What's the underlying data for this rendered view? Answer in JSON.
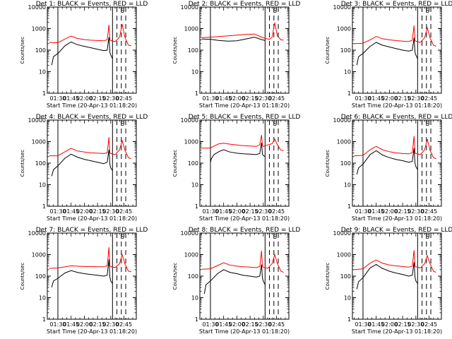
{
  "figure": {
    "xlabel": "Start Time (20-Apr-13 01:18:20)",
    "ylabel": "Counts/sec",
    "x_tick_labels": [
      "01:30",
      "01:45",
      "02:00",
      "02:15",
      "02:30",
      "02:45"
    ],
    "y_tick_labels": [
      "1",
      "10",
      "100",
      "1000",
      "10000"
    ]
  },
  "chart_data": [
    {
      "type": "line",
      "title": "Det 1: BLACK = Events, RED = LLD",
      "xlabel": "Start Time (20-Apr-13 01:18:20)",
      "ylabel": "Counts/sec",
      "yscale": "log",
      "ylim": [
        1,
        10000
      ],
      "x_ticks": [
        "01:30",
        "01:45",
        "02:00",
        "02:15",
        "02:30",
        "02:45"
      ],
      "markers": [
        "01:30",
        "02:32",
        "02:37",
        "02:42",
        "02:47"
      ],
      "series": [
        {
          "color": "#000000",
          "x": [
            "01:23",
            "01:25",
            "01:30",
            "01:38",
            "01:45",
            "01:52",
            "02:00",
            "02:07",
            "02:15",
            "02:22",
            "02:26",
            "02:28",
            "02:29",
            "02:30",
            "02:32"
          ],
          "y": [
            20,
            50,
            70,
            160,
            240,
            180,
            150,
            130,
            110,
            95,
            100,
            400,
            80,
            60,
            40
          ]
        },
        {
          "color": "#ff0000",
          "x": [
            "01:20",
            "01:30",
            "01:38",
            "01:45",
            "01:52",
            "02:00",
            "02:07",
            "02:15",
            "02:22",
            "02:26",
            "02:28",
            "02:29",
            "02:30",
            "02:35",
            "02:40",
            "02:43",
            "02:46",
            "02:50",
            "02:53"
          ],
          "y": [
            230,
            220,
            330,
            450,
            350,
            310,
            290,
            280,
            270,
            300,
            1500,
            300,
            280,
            250,
            400,
            1600,
            400,
            170,
            160
          ]
        }
      ]
    },
    {
      "type": "line",
      "title": "Det 2: BLACK = Events, RED = LLD",
      "xlabel": "Start Time (20-Apr-13 01:18:20)",
      "ylabel": "Counts/sec",
      "yscale": "log",
      "ylim": [
        1,
        10000
      ],
      "x_ticks": [
        "01:30",
        "01:45",
        "02:00",
        "02:15",
        "02:30",
        "02:45"
      ],
      "markers": [
        "01:30",
        "02:32",
        "02:37",
        "02:42",
        "02:47"
      ],
      "series": [
        {
          "color": "#000000",
          "x": [
            "01:20",
            "01:30",
            "01:40",
            "01:50",
            "02:00",
            "02:10",
            "02:20",
            "02:27",
            "02:32"
          ],
          "y": [
            330,
            320,
            280,
            260,
            270,
            330,
            400,
            320,
            280
          ]
        },
        {
          "color": "#ff0000",
          "x": [
            "01:20",
            "01:30",
            "01:40",
            "01:50",
            "02:00",
            "02:10",
            "02:20",
            "02:27",
            "02:32",
            "02:37",
            "02:40",
            "02:43",
            "02:46",
            "02:50",
            "02:53"
          ],
          "y": [
            380,
            400,
            430,
            460,
            500,
            540,
            560,
            420,
            350,
            320,
            400,
            1900,
            450,
            300,
            290
          ]
        }
      ]
    },
    {
      "type": "line",
      "title": "Det 3: BLACK = Events, RED = LLD",
      "xlabel": "Start Time (20-Apr-13 01:18:20)",
      "ylabel": "Counts/sec",
      "yscale": "log",
      "ylim": [
        1,
        10000
      ],
      "x_ticks": [
        "01:30",
        "01:45",
        "02:00",
        "02:15",
        "02:30",
        "02:45"
      ],
      "markers": [
        "01:30",
        "02:32",
        "02:37",
        "02:42",
        "02:47"
      ],
      "series": [
        {
          "color": "#000000",
          "x": [
            "01:23",
            "01:25",
            "01:30",
            "01:38",
            "01:45",
            "01:52",
            "02:00",
            "02:07",
            "02:15",
            "02:22",
            "02:26",
            "02:28",
            "02:29",
            "02:30",
            "02:32"
          ],
          "y": [
            20,
            50,
            70,
            150,
            230,
            170,
            140,
            120,
            100,
            90,
            100,
            380,
            80,
            60,
            40
          ]
        },
        {
          "color": "#ff0000",
          "x": [
            "01:20",
            "01:30",
            "01:38",
            "01:45",
            "01:52",
            "02:00",
            "02:07",
            "02:15",
            "02:22",
            "02:26",
            "02:28",
            "02:29",
            "02:30",
            "02:35",
            "02:40",
            "02:43",
            "02:46",
            "02:50",
            "02:53"
          ],
          "y": [
            200,
            210,
            300,
            430,
            340,
            300,
            280,
            260,
            250,
            290,
            1400,
            280,
            260,
            230,
            380,
            1100,
            380,
            170,
            150
          ]
        }
      ]
    },
    {
      "type": "line",
      "title": "Det 4: BLACK = Events, RED = LLD",
      "xlabel": "Start Time (20-Apr-13 01:18:20)",
      "ylabel": "Counts/sec",
      "yscale": "log",
      "ylim": [
        1,
        10000
      ],
      "x_ticks": [
        "01:30",
        "01:45",
        "02:00",
        "02:15",
        "02:30",
        "02:45"
      ],
      "markers": [
        "01:30",
        "02:32",
        "02:37",
        "02:42",
        "02:47"
      ],
      "series": [
        {
          "color": "#000000",
          "x": [
            "01:23",
            "01:25",
            "01:30",
            "01:38",
            "01:45",
            "01:52",
            "02:00",
            "02:07",
            "02:15",
            "02:22",
            "02:26",
            "02:28",
            "02:29",
            "02:30",
            "02:32"
          ],
          "y": [
            25,
            50,
            75,
            170,
            260,
            190,
            150,
            130,
            110,
            95,
            110,
            420,
            90,
            60,
            45
          ]
        },
        {
          "color": "#ff0000",
          "x": [
            "01:20",
            "01:30",
            "01:38",
            "01:45",
            "01:52",
            "02:00",
            "02:07",
            "02:15",
            "02:22",
            "02:26",
            "02:28",
            "02:29",
            "02:30",
            "02:35",
            "02:40",
            "02:43",
            "02:46",
            "02:50",
            "02:53"
          ],
          "y": [
            220,
            220,
            340,
            480,
            370,
            330,
            300,
            290,
            280,
            300,
            1600,
            300,
            280,
            250,
            420,
            1100,
            400,
            180,
            160
          ]
        }
      ]
    },
    {
      "type": "line",
      "title": "Det 5: BLACK = Events, RED = LLD",
      "xlabel": "Start Time (20-Apr-13 01:18:20)",
      "ylabel": "Counts/sec",
      "yscale": "log",
      "ylim": [
        1,
        10000
      ],
      "x_ticks": [
        "01:30",
        "01:45",
        "02:00",
        "02:15",
        "02:30",
        "02:45"
      ],
      "markers": [
        "01:30",
        "02:32",
        "02:37",
        "02:42",
        "02:47"
      ],
      "series": [
        {
          "color": "#000000",
          "x": [
            "01:30",
            "01:31",
            "01:34",
            "01:40",
            "01:45",
            "01:52",
            "02:00",
            "02:07",
            "02:15",
            "02:22",
            "02:26",
            "02:28",
            "02:29",
            "02:30",
            "02:32"
          ],
          "y": [
            110,
            160,
            250,
            350,
            420,
            330,
            290,
            270,
            260,
            250,
            280,
            900,
            260,
            230,
            200
          ]
        },
        {
          "color": "#ff0000",
          "x": [
            "01:20",
            "01:30",
            "01:35",
            "01:40",
            "01:45",
            "01:52",
            "02:00",
            "02:07",
            "02:15",
            "02:22",
            "02:26",
            "02:28",
            "02:29",
            "02:30",
            "02:35",
            "02:40",
            "02:43",
            "02:46",
            "02:50",
            "02:53"
          ],
          "y": [
            500,
            500,
            650,
            800,
            850,
            760,
            700,
            650,
            620,
            600,
            700,
            2000,
            650,
            600,
            700,
            800,
            1300,
            700,
            400,
            380
          ]
        }
      ]
    },
    {
      "type": "line",
      "title": "Det 6: BLACK = Events, RED = LLD",
      "xlabel": "Start Time (20-Apr-13 01:18:20)",
      "ylabel": "Counts/sec",
      "yscale": "log",
      "ylim": [
        1,
        10000
      ],
      "x_ticks": [
        "01:30",
        "01:45",
        "02:00",
        "02:15",
        "02:30",
        "02:45"
      ],
      "markers": [
        "01:30",
        "02:32",
        "02:37",
        "02:42",
        "02:47"
      ],
      "series": [
        {
          "color": "#000000",
          "x": [
            "01:23",
            "01:25",
            "01:30",
            "01:38",
            "01:45",
            "01:52",
            "02:00",
            "02:07",
            "02:15",
            "02:22",
            "02:26",
            "02:28",
            "02:29",
            "02:30",
            "02:32"
          ],
          "y": [
            30,
            60,
            90,
            250,
            380,
            240,
            180,
            150,
            130,
            110,
            120,
            500,
            100,
            70,
            50
          ]
        },
        {
          "color": "#ff0000",
          "x": [
            "01:20",
            "01:30",
            "01:38",
            "01:45",
            "01:52",
            "02:00",
            "02:07",
            "02:15",
            "02:22",
            "02:26",
            "02:28",
            "02:29",
            "02:30",
            "02:35",
            "02:40",
            "02:43",
            "02:46",
            "02:50",
            "02:53"
          ],
          "y": [
            220,
            230,
            420,
            600,
            420,
            340,
            300,
            280,
            270,
            300,
            1800,
            300,
            280,
            250,
            420,
            1300,
            400,
            180,
            160
          ]
        }
      ]
    },
    {
      "type": "line",
      "title": "Det 7: BLACK = Events, RED = LLD",
      "xlabel": "Start Time (20-Apr-13 01:18:20)",
      "ylabel": "Counts/sec",
      "yscale": "log",
      "ylim": [
        1,
        10000
      ],
      "x_ticks": [
        "01:30",
        "01:45",
        "02:00",
        "02:15",
        "02:30",
        "02:45"
      ],
      "markers": [
        "01:30",
        "02:32",
        "02:37",
        "02:42",
        "02:47"
      ],
      "series": [
        {
          "color": "#000000",
          "x": [
            "01:23",
            "01:25",
            "01:30",
            "01:38",
            "01:45",
            "01:52",
            "02:00",
            "02:07",
            "02:15",
            "02:22",
            "02:26",
            "02:28",
            "02:29",
            "02:30",
            "02:32"
          ],
          "y": [
            30,
            60,
            80,
            140,
            180,
            150,
            130,
            120,
            110,
            100,
            110,
            600,
            90,
            60,
            45
          ]
        },
        {
          "color": "#ff0000",
          "x": [
            "01:20",
            "01:30",
            "01:38",
            "01:45",
            "01:52",
            "02:00",
            "02:07",
            "02:15",
            "02:22",
            "02:26",
            "02:28",
            "02:29",
            "02:30",
            "02:35",
            "02:40",
            "02:43",
            "02:46",
            "02:50",
            "02:53"
          ],
          "y": [
            230,
            240,
            270,
            300,
            290,
            280,
            280,
            270,
            270,
            300,
            2200,
            300,
            280,
            250,
            380,
            1000,
            380,
            170,
            160
          ]
        }
      ]
    },
    {
      "type": "line",
      "title": "Det 8: BLACK = Events, RED = LLD",
      "xlabel": "Start Time (20-Apr-13 01:18:20)",
      "ylabel": "Counts/sec",
      "yscale": "log",
      "ylim": [
        1,
        10000
      ],
      "x_ticks": [
        "01:30",
        "01:45",
        "02:00",
        "02:15",
        "02:30",
        "02:45"
      ],
      "markers": [
        "01:30",
        "02:32",
        "02:37",
        "02:42",
        "02:47"
      ],
      "series": [
        {
          "color": "#000000",
          "x": [
            "01:23",
            "01:25",
            "01:30",
            "01:38",
            "01:45",
            "01:52",
            "02:00",
            "02:07",
            "02:15",
            "02:22",
            "02:26",
            "02:28",
            "02:29",
            "02:30",
            "02:32"
          ],
          "y": [
            15,
            40,
            60,
            130,
            200,
            150,
            130,
            110,
            100,
            90,
            100,
            350,
            80,
            60,
            40
          ]
        },
        {
          "color": "#ff0000",
          "x": [
            "01:20",
            "01:30",
            "01:38",
            "01:45",
            "01:52",
            "02:00",
            "02:07",
            "02:15",
            "02:22",
            "02:26",
            "02:28",
            "02:29",
            "02:30",
            "02:35",
            "02:40",
            "02:43",
            "02:46",
            "02:50",
            "02:53"
          ],
          "y": [
            210,
            220,
            310,
            420,
            330,
            290,
            270,
            260,
            250,
            280,
            1500,
            280,
            260,
            230,
            380,
            1000,
            380,
            170,
            150
          ]
        }
      ]
    },
    {
      "type": "line",
      "title": "Det 9: BLACK = Events, RED = LLD",
      "xlabel": "Start Time (20-Apr-13 01:18:20)",
      "ylabel": "Counts/sec",
      "yscale": "log",
      "ylim": [
        1,
        10000
      ],
      "x_ticks": [
        "01:30",
        "01:45",
        "02:00",
        "02:15",
        "02:30",
        "02:45"
      ],
      "markers": [
        "01:30",
        "02:32",
        "02:37",
        "02:42",
        "02:47"
      ],
      "series": [
        {
          "color": "#000000",
          "x": [
            "01:23",
            "01:25",
            "01:30",
            "01:38",
            "01:45",
            "01:52",
            "02:00",
            "02:07",
            "02:15",
            "02:22",
            "02:26",
            "02:28",
            "02:29",
            "02:30",
            "02:32"
          ],
          "y": [
            25,
            55,
            85,
            240,
            350,
            230,
            170,
            140,
            120,
            100,
            110,
            450,
            90,
            60,
            45
          ]
        },
        {
          "color": "#ff0000",
          "x": [
            "01:20",
            "01:30",
            "01:38",
            "01:45",
            "01:52",
            "02:00",
            "02:07",
            "02:15",
            "02:22",
            "02:26",
            "02:28",
            "02:29",
            "02:30",
            "02:35",
            "02:40",
            "02:43",
            "02:46",
            "02:50",
            "02:53"
          ],
          "y": [
            200,
            220,
            400,
            560,
            400,
            330,
            300,
            280,
            260,
            290,
            1600,
            290,
            270,
            240,
            380,
            900,
            380,
            170,
            150
          ]
        }
      ]
    }
  ]
}
